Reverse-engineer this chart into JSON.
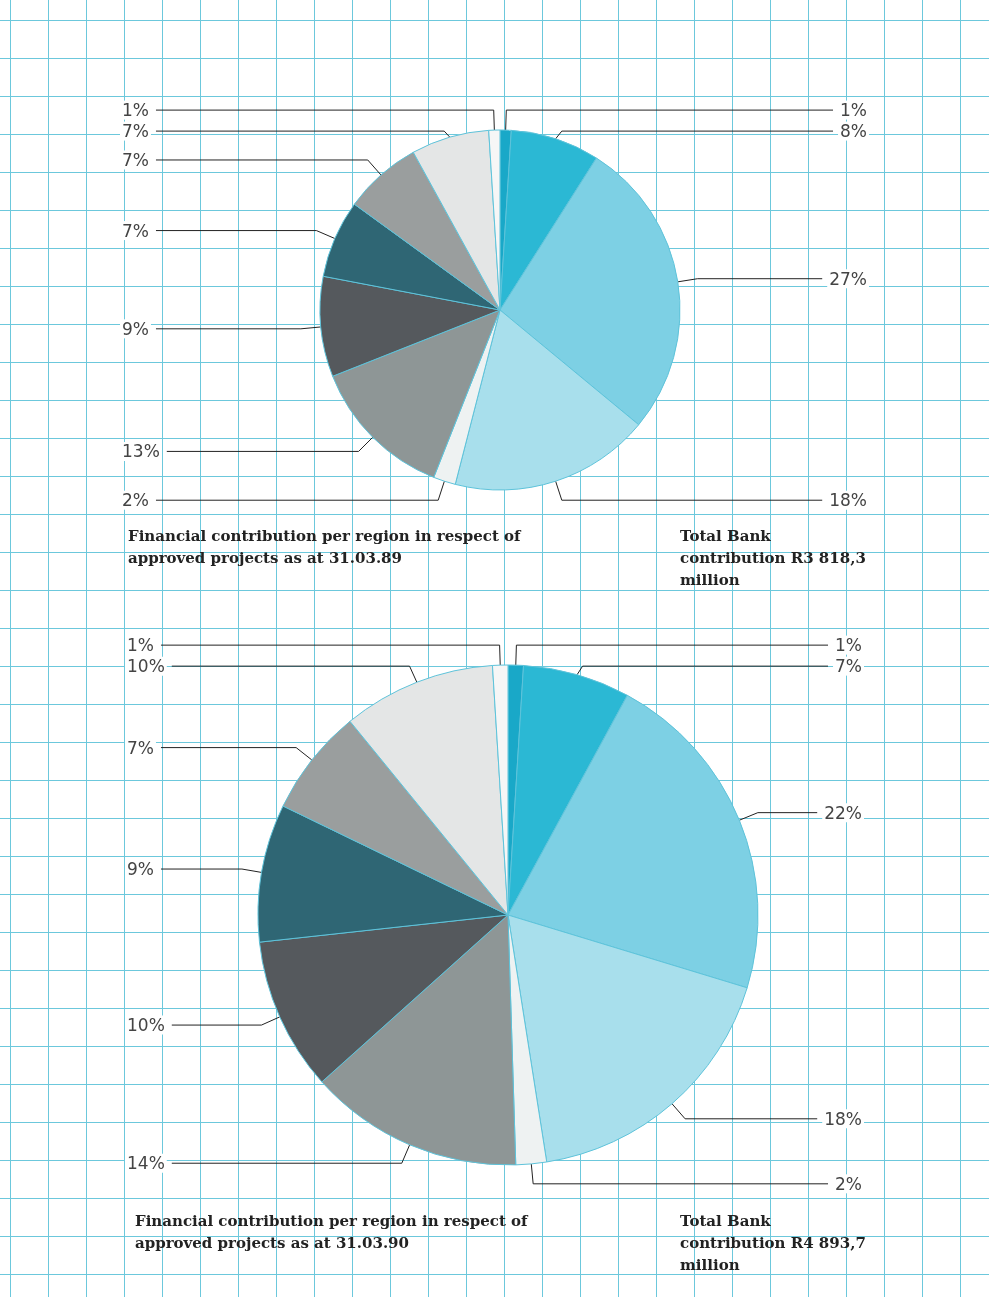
{
  "chart_data": [
    {
      "type": "pie",
      "title": "Financial contribution per region in respect of approved projects as at 31.03.89",
      "subtitle": "Total Bank contribution R3 818,3 million",
      "categories": [
        null,
        null,
        null,
        null,
        null,
        null,
        null,
        null,
        null,
        null,
        null
      ],
      "values": [
        1,
        8,
        27,
        18,
        2,
        13,
        9,
        7,
        7,
        7,
        1
      ],
      "value_labels": [
        "1%",
        "8%",
        "27%",
        "18%",
        "2%",
        "13%",
        "9%",
        "7%",
        "7%",
        "7%",
        "1%"
      ],
      "colors": [
        "#19a8c8",
        "#2bb8d4",
        "#7dd0e4",
        "#a8dfec",
        "#eef2f2",
        "#8e9696",
        "#55595d",
        "#2f6674",
        "#9a9e9e",
        "#e4e6e6",
        "#f6f6f6"
      ]
    },
    {
      "type": "pie",
      "title": "Financial contribution per region in respect of approved projects as at 31.03.90",
      "subtitle": "Total Bank contribution R4 893,7 million",
      "categories": [
        null,
        null,
        null,
        null,
        null,
        null,
        null,
        null,
        null,
        null,
        null
      ],
      "values": [
        1,
        7,
        22,
        18,
        2,
        14,
        10,
        9,
        7,
        10,
        1
      ],
      "value_labels": [
        "1%",
        "7%",
        "22%",
        "18%",
        "2%",
        "14%",
        "10%",
        "9%",
        "7%",
        "10%",
        "1%"
      ],
      "colors": [
        "#19a8c8",
        "#2bb8d4",
        "#7dd0e4",
        "#a8dfec",
        "#eef2f2",
        "#8e9696",
        "#55595d",
        "#2f6674",
        "#9a9e9e",
        "#e4e6e6",
        "#f6f6f6"
      ]
    }
  ]
}
